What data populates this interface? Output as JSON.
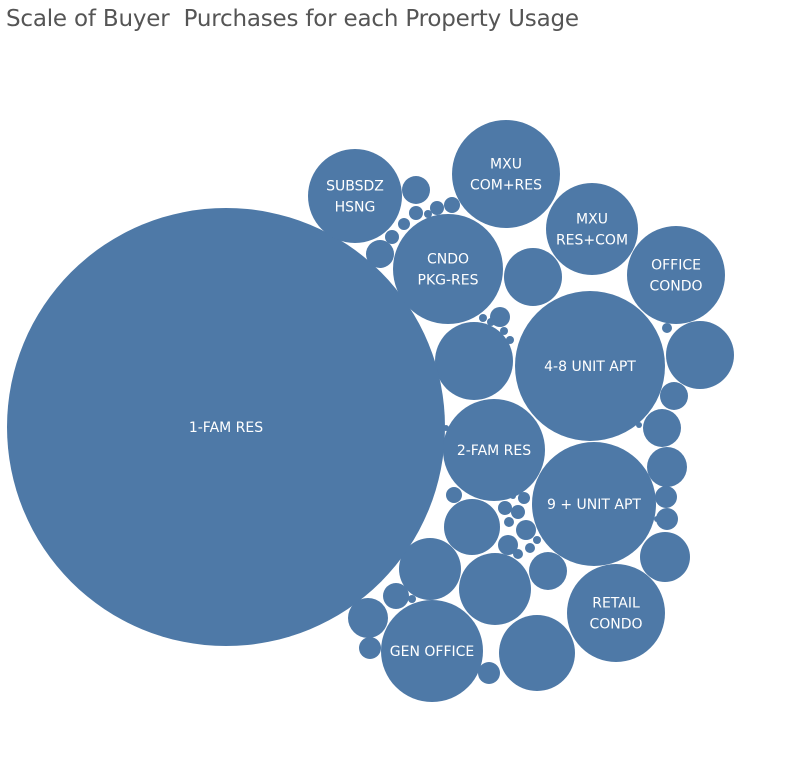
{
  "title": "Scale of Buyer  Purchases for each Property Usage",
  "colors": {
    "bubble": "#4e79a7",
    "label": "#ffffff",
    "title": "#555555"
  },
  "chart_data": {
    "type": "bubble",
    "title": "Scale of Buyer  Purchases for each Property Usage",
    "labeled": [
      {
        "label": "1-FAM RES",
        "lines": [
          "1-FAM RES"
        ]
      },
      {
        "label": "SUBSDZ HSNG",
        "lines": [
          "SUBSDZ",
          "HSNG"
        ]
      },
      {
        "label": "MXU COM+RES",
        "lines": [
          "MXU",
          "COM+RES"
        ]
      },
      {
        "label": "CNDO PKG-RES",
        "lines": [
          "CNDO",
          "PKG-RES"
        ]
      },
      {
        "label": "MXU RES+COM",
        "lines": [
          "MXU",
          "RES+COM"
        ]
      },
      {
        "label": "OFFICE CONDO",
        "lines": [
          "OFFICE",
          "CONDO"
        ]
      },
      {
        "label": "4-8 UNIT APT",
        "lines": [
          "4-8 UNIT APT"
        ]
      },
      {
        "label": "2-FAM RES",
        "lines": [
          "2-FAM RES"
        ]
      },
      {
        "label": "9 + UNIT APT",
        "lines": [
          "9 + UNIT APT"
        ]
      },
      {
        "label": "RETAIL CONDO",
        "lines": [
          "RETAIL",
          "CONDO"
        ]
      },
      {
        "label": "GEN OFFICE",
        "lines": [
          "GEN OFFICE"
        ]
      }
    ]
  }
}
